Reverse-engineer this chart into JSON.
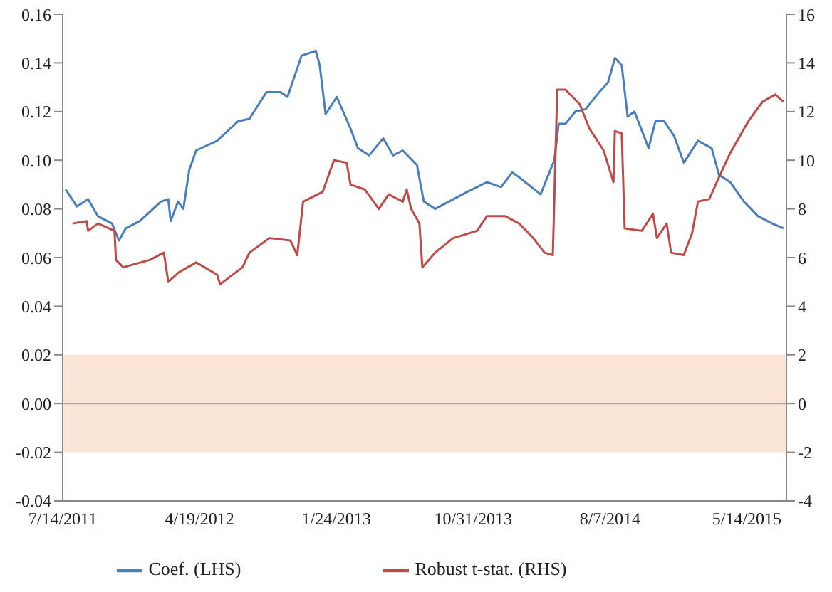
{
  "chart_data": {
    "type": "line",
    "xlim": [
      "2011-07-14",
      "2015-08-03"
    ],
    "xticks": [
      {
        "value": "2011-07-14",
        "label": "7/14/2011"
      },
      {
        "value": "2012-04-19",
        "label": "4/19/2012"
      },
      {
        "value": "2013-01-24",
        "label": "1/24/2013"
      },
      {
        "value": "2013-10-31",
        "label": "10/31/2013"
      },
      {
        "value": "2014-08-07",
        "label": "8/7/2014"
      },
      {
        "value": "2015-05-14",
        "label": "5/14/2015"
      }
    ],
    "ylim": [
      -0.04,
      0.16
    ],
    "yticks": [
      {
        "value": -0.04,
        "label": "-0.04"
      },
      {
        "value": -0.02,
        "label": "-0.02"
      },
      {
        "value": 0,
        "label": "0.00"
      },
      {
        "value": 0.02,
        "label": "0.02"
      },
      {
        "value": 0.04,
        "label": "0.04"
      },
      {
        "value": 0.06,
        "label": "0.06"
      },
      {
        "value": 0.08,
        "label": "0.08"
      },
      {
        "value": 0.1,
        "label": "0.10"
      },
      {
        "value": 0.12,
        "label": "0.12"
      },
      {
        "value": 0.14,
        "label": "0.14"
      },
      {
        "value": 0.16,
        "label": "0.16"
      }
    ],
    "y2lim": [
      -4,
      16
    ],
    "y2ticks": [
      -4,
      -2,
      0,
      2,
      4,
      6,
      8,
      10,
      12,
      14,
      16
    ],
    "legend": "bottom",
    "bands": [
      {
        "axis": "y",
        "from": -0.02,
        "to": 0.02,
        "color": "#fbe5d6"
      }
    ],
    "ref_lines": [
      {
        "axis": "y",
        "value": 0,
        "color": "#a6a6a6"
      }
    ],
    "series": [
      {
        "name": "Coef. (LHS)",
        "color": "#4a7ebb",
        "x": [
          "2011-07-20",
          "2011-08-12",
          "2011-09-04",
          "2011-09-24",
          "2011-10-23",
          "2011-11-06",
          "2011-11-20",
          "2011-12-19",
          "2012-01-31",
          "2012-02-15",
          "2012-02-20",
          "2012-03-06",
          "2012-03-17",
          "2012-03-29",
          "2012-04-12",
          "2012-05-25",
          "2012-07-07",
          "2012-07-30",
          "2012-09-03",
          "2012-10-02",
          "2012-10-16",
          "2012-11-14",
          "2012-12-13",
          "2012-12-21",
          "2013-01-02",
          "2013-01-25",
          "2013-02-22",
          "2013-03-09",
          "2013-04-01",
          "2013-04-30",
          "2013-05-20",
          "2013-06-09",
          "2013-07-08",
          "2013-07-22",
          "2013-08-14",
          "2013-10-19",
          "2013-11-28",
          "2013-12-27",
          "2014-01-19",
          "2014-02-02",
          "2014-03-18",
          "2014-04-01",
          "2014-04-15",
          "2014-04-24",
          "2014-05-08",
          "2014-05-28",
          "2014-06-18",
          "2014-07-16",
          "2014-08-03",
          "2014-08-17",
          "2014-08-31",
          "2014-09-12",
          "2014-09-26",
          "2014-10-25",
          "2014-11-08",
          "2014-11-26",
          "2014-12-16",
          "2015-01-05",
          "2015-02-03",
          "2015-03-03",
          "2015-03-18",
          "2015-04-10",
          "2015-05-08",
          "2015-06-06",
          "2015-07-05",
          "2015-07-28"
        ],
        "values": [
          0.088,
          0.081,
          0.084,
          0.077,
          0.074,
          0.067,
          0.072,
          0.075,
          0.083,
          0.084,
          0.075,
          0.083,
          0.08,
          0.096,
          0.104,
          0.108,
          0.116,
          0.117,
          0.128,
          0.128,
          0.126,
          0.143,
          0.145,
          0.139,
          0.119,
          0.126,
          0.113,
          0.105,
          0.102,
          0.109,
          0.102,
          0.104,
          0.098,
          0.083,
          0.08,
          0.087,
          0.091,
          0.089,
          0.095,
          0.093,
          0.086,
          0.093,
          0.1,
          0.115,
          0.115,
          0.12,
          0.121,
          0.128,
          0.132,
          0.142,
          0.139,
          0.118,
          0.12,
          0.105,
          0.116,
          0.116,
          0.11,
          0.099,
          0.108,
          0.105,
          0.094,
          0.091,
          0.083,
          0.077,
          0.074,
          0.072
        ]
      },
      {
        "name": "Robust t-stat. (RHS)",
        "color": "#be4b48",
        "axis": "y2",
        "x": [
          "2011-08-03",
          "2011-09-01",
          "2011-09-04",
          "2011-09-24",
          "2011-10-28",
          "2011-10-31",
          "2011-11-15",
          "2012-01-08",
          "2012-02-06",
          "2012-02-15",
          "2012-03-08",
          "2012-04-12",
          "2012-05-25",
          "2012-05-31",
          "2012-07-16",
          "2012-07-30",
          "2012-09-09",
          "2012-10-22",
          "2012-11-05",
          "2012-11-17",
          "2012-12-27",
          "2013-01-19",
          "2013-02-14",
          "2013-02-22",
          "2013-03-23",
          "2013-04-21",
          "2013-05-11",
          "2013-06-09",
          "2013-06-17",
          "2013-06-26",
          "2013-07-13",
          "2013-07-19",
          "2013-08-14",
          "2013-09-20",
          "2013-11-08",
          "2013-11-28",
          "2014-01-05",
          "2014-02-02",
          "2014-03-03",
          "2014-03-26",
          "2014-04-12",
          "2014-04-21",
          "2014-05-08",
          "2014-06-06",
          "2014-06-26",
          "2014-07-25",
          "2014-08-14",
          "2014-08-17",
          "2014-08-31",
          "2014-09-06",
          "2014-10-11",
          "2014-11-03",
          "2014-11-11",
          "2014-12-01",
          "2014-12-10",
          "2015-01-05",
          "2015-01-22",
          "2015-02-03",
          "2015-02-26",
          "2015-03-18",
          "2015-04-10",
          "2015-05-17",
          "2015-06-15",
          "2015-07-11",
          "2015-07-28"
        ],
        "values": [
          7.4,
          7.5,
          7.1,
          7.4,
          7.1,
          5.9,
          5.6,
          5.9,
          6.2,
          5.0,
          5.4,
          5.8,
          5.3,
          4.9,
          5.6,
          6.2,
          6.8,
          6.7,
          6.1,
          8.3,
          8.7,
          10.0,
          9.9,
          9.0,
          8.8,
          8.0,
          8.6,
          8.3,
          8.8,
          8.0,
          7.4,
          5.6,
          6.2,
          6.8,
          7.1,
          7.7,
          7.7,
          7.4,
          6.8,
          6.2,
          6.1,
          12.9,
          12.9,
          12.3,
          11.3,
          10.4,
          9.1,
          11.2,
          11.1,
          7.2,
          7.1,
          7.8,
          6.8,
          7.4,
          6.2,
          6.1,
          7.0,
          8.3,
          8.4,
          9.3,
          10.3,
          11.6,
          12.4,
          12.7,
          12.4
        ]
      }
    ]
  }
}
